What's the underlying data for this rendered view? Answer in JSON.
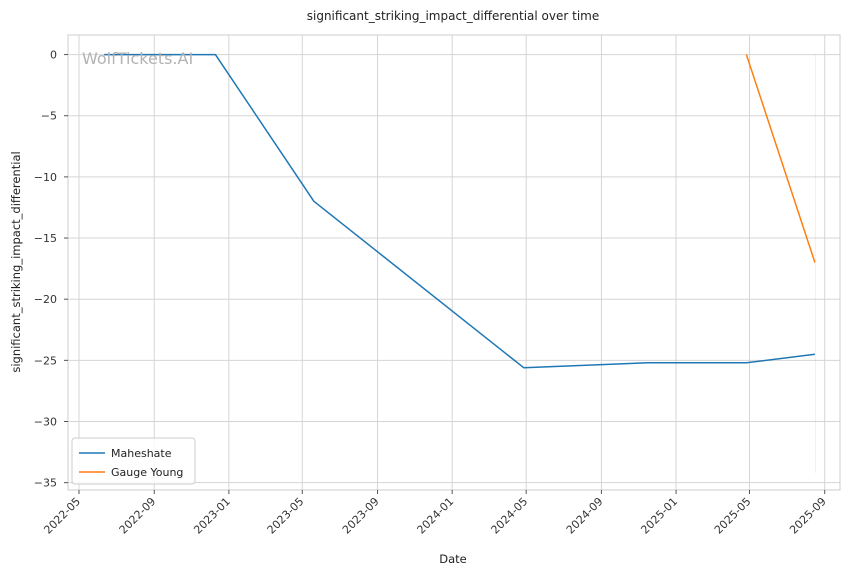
{
  "chart_data": {
    "type": "line",
    "title": "significant_striking_impact_differential over time",
    "xlabel": "Date",
    "ylabel": "significant_striking_impact_differential",
    "xlim": [
      "2022-04-13",
      "2025-09-26"
    ],
    "ylim": [
      -35.6,
      1.6
    ],
    "x_ticks": [
      "2022-05",
      "2022-09",
      "2023-01",
      "2023-05",
      "2023-09",
      "2024-01",
      "2024-05",
      "2024-09",
      "2025-01",
      "2025-05",
      "2025-09"
    ],
    "y_ticks": [
      0,
      -5,
      -10,
      -15,
      -20,
      -25,
      -30,
      -35
    ],
    "grid": true,
    "legend_position": "lower-left",
    "watermark": "WolfTickets.AI",
    "series": [
      {
        "name": "Maheshate",
        "color": "#1f77b4",
        "points": [
          {
            "x": "2022-06-11",
            "y": 0
          },
          {
            "x": "2022-12-10",
            "y": 0
          },
          {
            "x": "2023-05-20",
            "y": -12
          },
          {
            "x": "2024-04-27",
            "y": -25.6
          },
          {
            "x": "2024-11-16",
            "y": -25.2
          },
          {
            "x": "2025-04-26",
            "y": -25.2
          },
          {
            "x": "2025-08-16",
            "y": -24.5
          }
        ]
      },
      {
        "name": "Gauge Young",
        "color": "#ff7f0e",
        "points": [
          {
            "x": "2025-04-26",
            "y": 0
          },
          {
            "x": "2025-08-16",
            "y": -17
          }
        ]
      }
    ]
  }
}
